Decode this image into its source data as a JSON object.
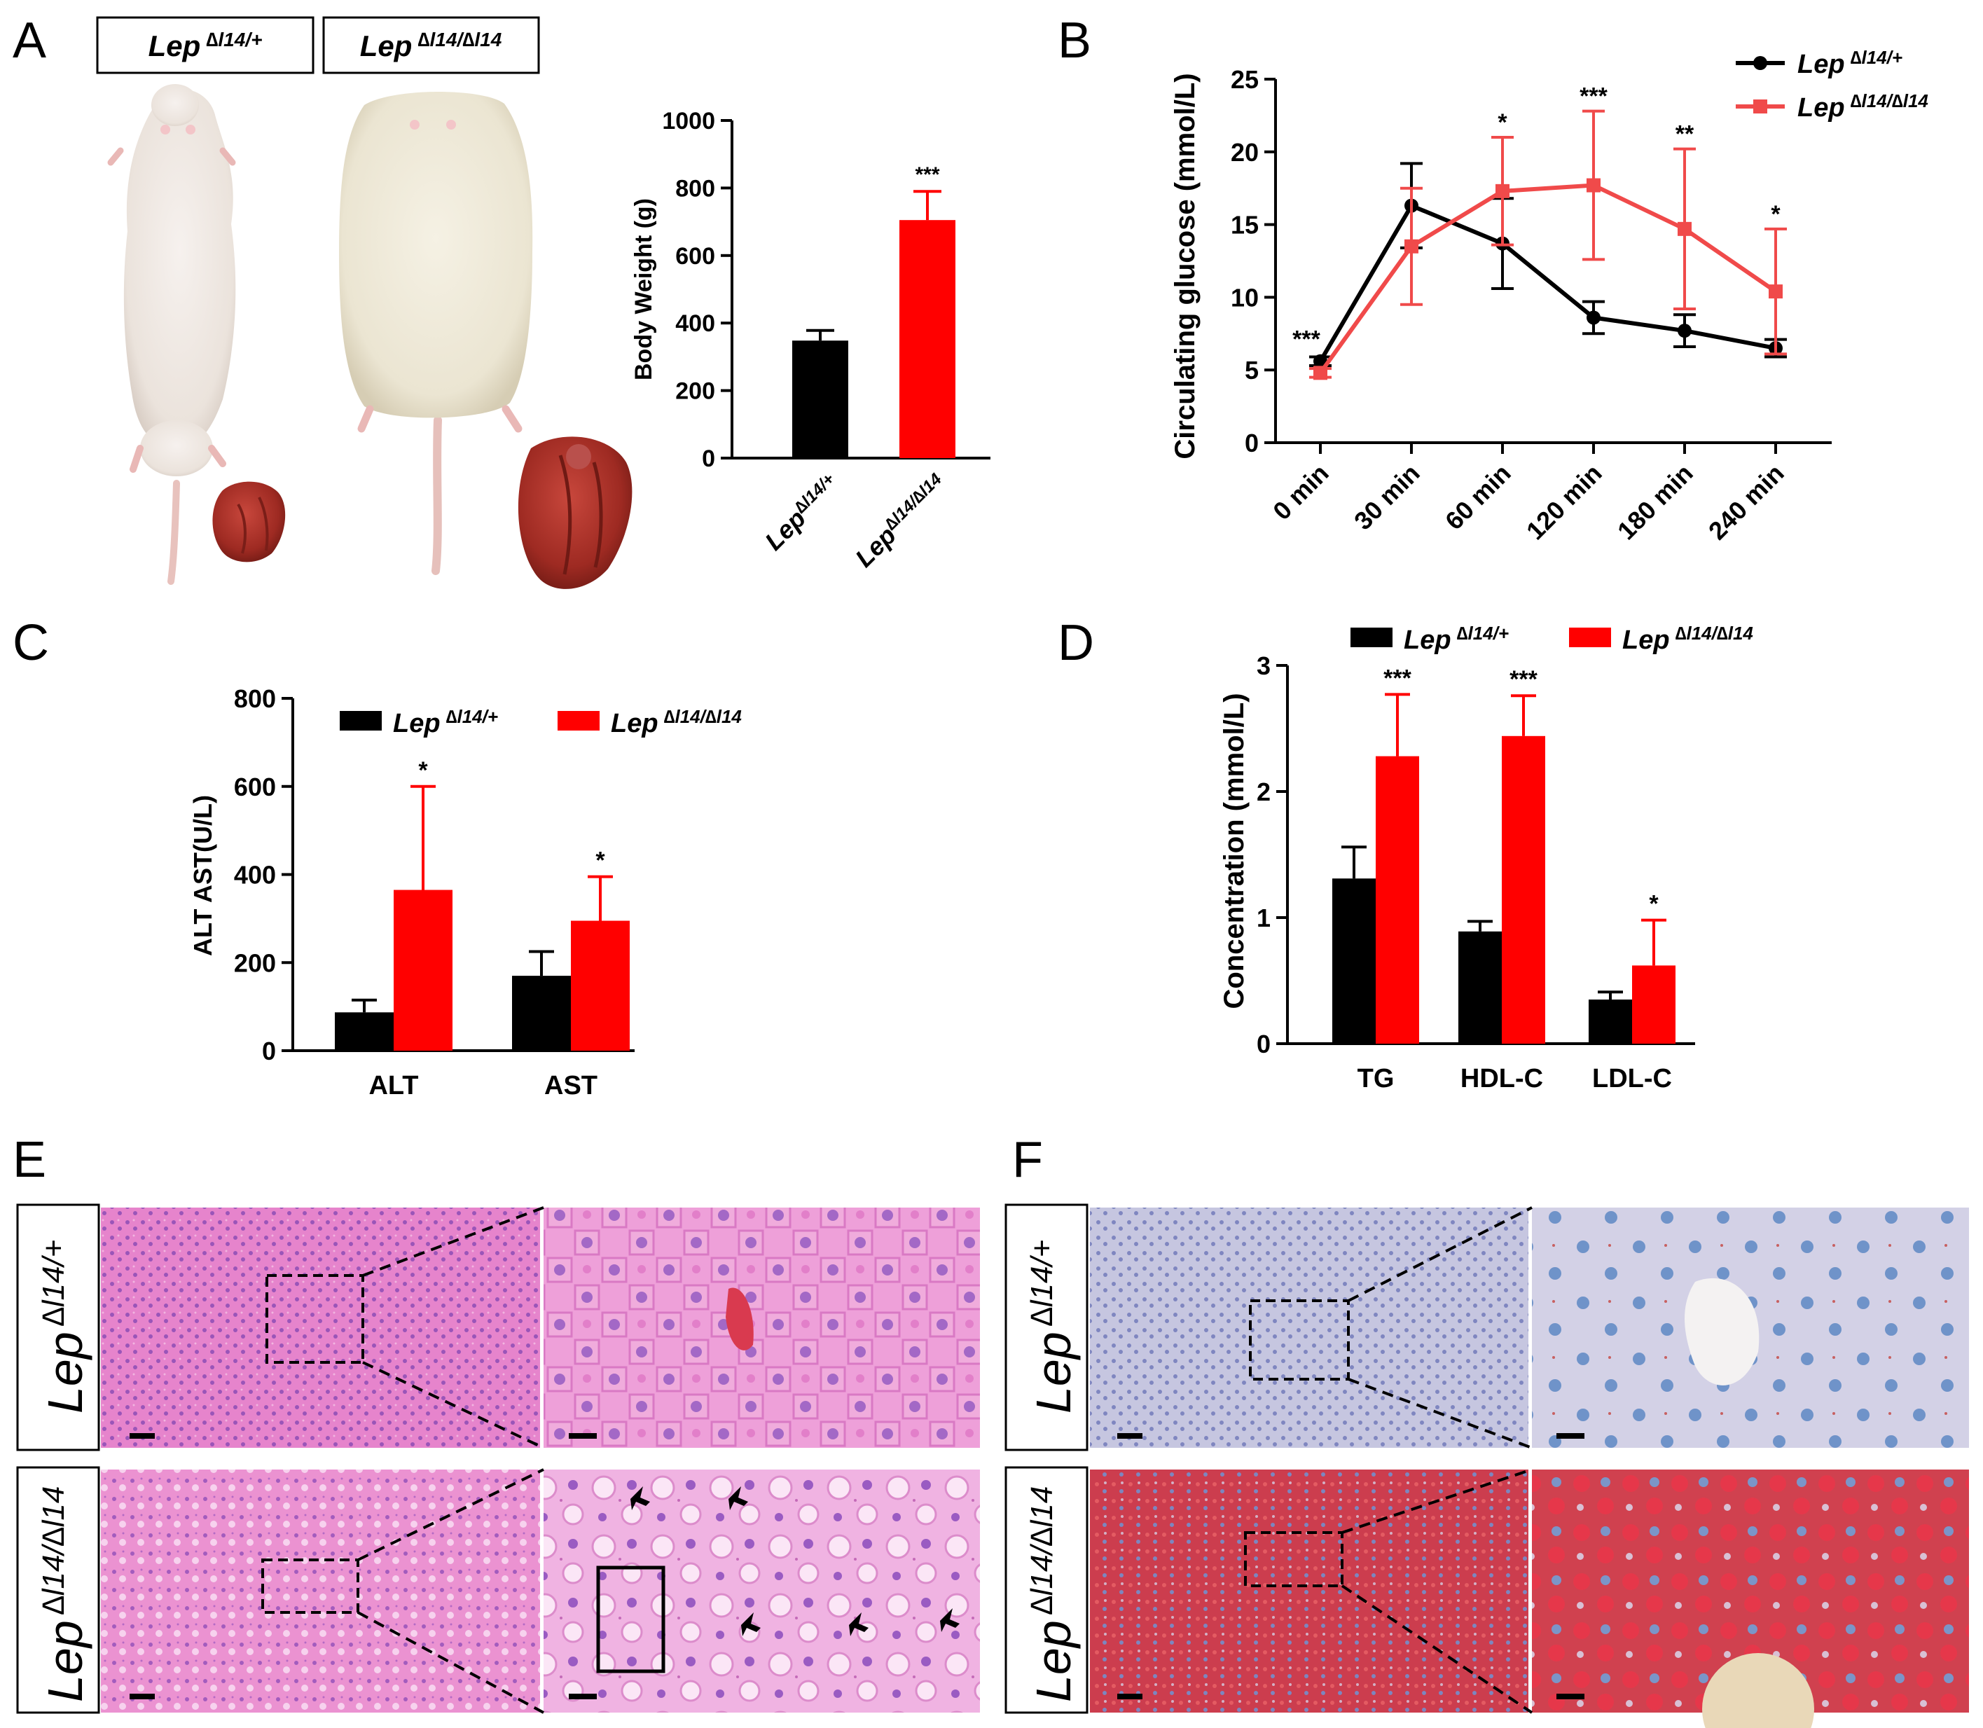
{
  "panels": {
    "a": "A",
    "b": "B",
    "c": "C",
    "d": "D",
    "e": "E",
    "f": "F"
  },
  "genotypes": {
    "base": "Lep",
    "het": "Lep ∆l14/+",
    "hom": "Lep ∆l14/∆l14",
    "het_sup": "∆l14/+",
    "hom_sup": "∆l14/∆l14",
    "het_sup_ax": "∆l14/+",
    "hom_sup_ax": "∆l14/∆l14"
  },
  "colors": {
    "het": "#000000",
    "hom_bar": "#ff0000",
    "hom_line": "#f04a4a"
  },
  "chart_data": [
    {
      "id": "A",
      "type": "bar",
      "ylabel": "Body Weight (g)",
      "ylim": [
        0,
        1000
      ],
      "yticks": [
        "0",
        "200",
        "400",
        "600",
        "800",
        "1000"
      ],
      "categories": [
        "Lep∆l14/+",
        "Lep∆l14/∆l14"
      ],
      "values": [
        348,
        705
      ],
      "errors": [
        30,
        85
      ],
      "colors": [
        "#000000",
        "#ff0000"
      ],
      "significance": [
        "",
        "***"
      ]
    },
    {
      "id": "B",
      "type": "line",
      "ylabel": "Circulating glucose (mmol/L)",
      "ylim": [
        0,
        25
      ],
      "yticks": [
        "0",
        "5",
        "10",
        "15",
        "20",
        "25"
      ],
      "categories": [
        "0 min",
        "30 min",
        "60 min",
        "120 min",
        "180 min",
        "240 min"
      ],
      "series": [
        {
          "name": "Lep ∆l14/+",
          "values": [
            5.6,
            16.3,
            13.7,
            8.6,
            7.7,
            6.5
          ],
          "errors": [
            0.3,
            2.9,
            3.1,
            1.1,
            1.1,
            0.6
          ],
          "color": "#000000",
          "marker": "circle"
        },
        {
          "name": "Lep ∆l14/∆l14",
          "values": [
            4.8,
            13.5,
            17.3,
            17.7,
            14.7,
            10.4
          ],
          "errors": [
            0.3,
            4.0,
            3.7,
            5.1,
            5.5,
            4.3
          ],
          "color": "#f04a4a",
          "marker": "square"
        }
      ],
      "significance": [
        "***",
        "",
        "*",
        "***",
        "**",
        "*"
      ],
      "legend": "top-right"
    },
    {
      "id": "C",
      "type": "bar",
      "ylabel": "ALT AST(U/L)",
      "ylim": [
        0,
        800
      ],
      "yticks": [
        "0",
        "200",
        "400",
        "600",
        "800"
      ],
      "categories": [
        "ALT",
        "AST"
      ],
      "series": [
        {
          "name": "Lep ∆l14/+",
          "values": [
            87,
            170
          ],
          "errors": [
            28,
            55
          ],
          "color": "#000000"
        },
        {
          "name": "Lep ∆l14/∆l14",
          "values": [
            365,
            295
          ],
          "errors": [
            235,
            100
          ],
          "color": "#ff0000"
        }
      ],
      "significance": [
        "*",
        "*"
      ],
      "legend": "top"
    },
    {
      "id": "D",
      "type": "bar",
      "ylabel": "Concentration (mmol/L)",
      "ylim": [
        0,
        3
      ],
      "yticks": [
        "0",
        "1",
        "2",
        "3"
      ],
      "categories": [
        "TG",
        "HDL-C",
        "LDL-C"
      ],
      "series": [
        {
          "name": "Lep ∆l14/+",
          "values": [
            1.31,
            0.89,
            0.35
          ],
          "errors": [
            0.25,
            0.08,
            0.06
          ],
          "color": "#000000"
        },
        {
          "name": "Lep ∆l14/∆l14",
          "values": [
            2.28,
            2.44,
            0.62
          ],
          "errors": [
            0.49,
            0.32,
            0.36
          ],
          "color": "#ff0000"
        }
      ],
      "significance": [
        "***",
        "***",
        "*"
      ],
      "legend": "top"
    }
  ]
}
